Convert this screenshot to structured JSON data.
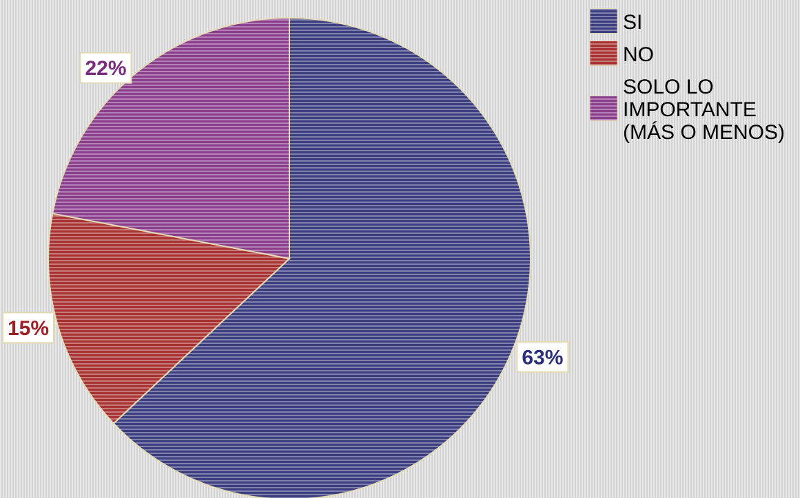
{
  "chart_data": {
    "type": "pie",
    "slices": [
      {
        "label": "SI",
        "value": 63,
        "display": "63%",
        "color": "#3c3f7f",
        "label_color": "#2b2e78",
        "label_side": "right"
      },
      {
        "label": "NO",
        "value": 15,
        "display": "15%",
        "color": "#a93232",
        "label_color": "#a01f25",
        "label_side": "left"
      },
      {
        "label": "SOLO LO IMPORTANTE (MÁS O MENOS)",
        "value": 22,
        "display": "22%",
        "color": "#8b3e8c",
        "label_color": "#7a2d7e",
        "label_side": "left"
      }
    ],
    "legend": {
      "placement": "top-right",
      "entries": [
        [
          "SI"
        ],
        [
          "NO"
        ],
        [
          "SOLO LO",
          "IMPORTANTE",
          "(MÁS O MENOS)"
        ]
      ]
    },
    "fill_pattern": "horizontal-stripes",
    "start": "top",
    "direction": "clockwise"
  }
}
